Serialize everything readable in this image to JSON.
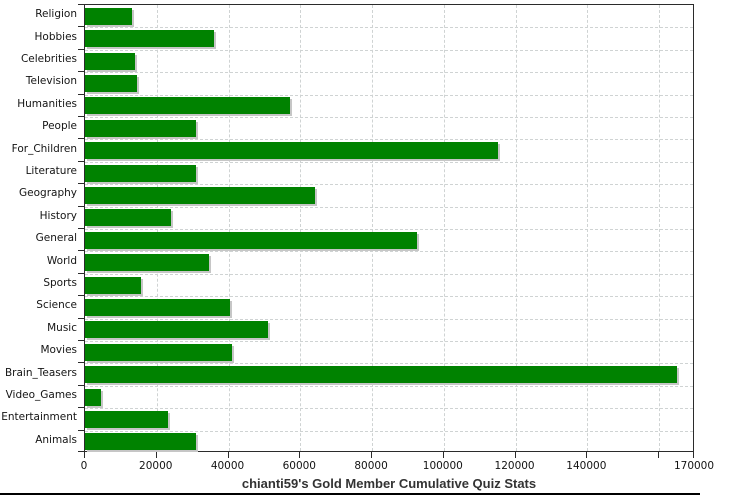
{
  "chart_data": {
    "type": "bar",
    "orientation": "horizontal",
    "title": "chianti59's Gold Member Cumulative Quiz Stats",
    "categories": [
      "Religion",
      "Hobbies",
      "Celebrities",
      "Television",
      "Humanities",
      "People",
      "For_Children",
      "Literature",
      "Geography",
      "History",
      "General",
      "World",
      "Sports",
      "Science",
      "Music",
      "Movies",
      "Brain_Teasers",
      "Video_Games",
      "Entertainment",
      "Animals"
    ],
    "values": [
      13000,
      36000,
      14000,
      14500,
      57000,
      31000,
      115000,
      31000,
      64000,
      24000,
      92500,
      34500,
      15500,
      40500,
      51000,
      41000,
      165000,
      4500,
      23000,
      31000
    ],
    "xlabel": "",
    "ylabel": "",
    "xlim": [
      0,
      170000
    ],
    "x_ticks": [
      {
        "value": 0,
        "label": "0"
      },
      {
        "value": 20000,
        "label": "20000"
      },
      {
        "value": 40000,
        "label": "40000"
      },
      {
        "value": 60000,
        "label": "60000"
      },
      {
        "value": 80000,
        "label": "80000"
      },
      {
        "value": 100000,
        "label": "100000"
      },
      {
        "value": 120000,
        "label": "120000"
      },
      {
        "value": 140000,
        "label": "140000"
      },
      {
        "value": 160000,
        "label": ""
      },
      {
        "value": 170000,
        "label": "170000"
      }
    ],
    "grid": "dashed-both-axes",
    "legend": "none",
    "colors": {
      "bar": "#008200",
      "bar_shadow": "#c6c6c6",
      "grid": "#cfd3d3",
      "axis": "#2b2b2b",
      "tick_label": "#141414",
      "title": "#333333",
      "background": "#ffffff",
      "bottom_rule": "#000000"
    }
  }
}
